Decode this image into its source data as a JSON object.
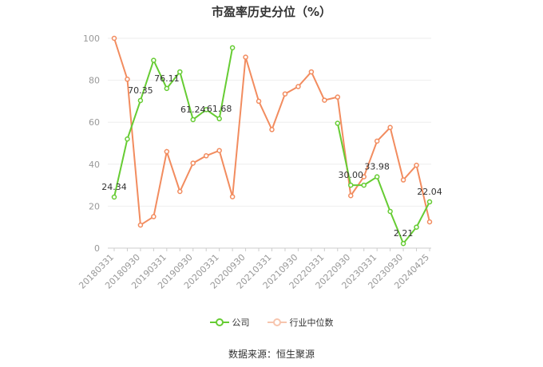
{
  "title": "市盈率历史分位（%）",
  "source": "数据来源：恒生聚源",
  "legend": {
    "company": "公司",
    "industry": "行业中位数"
  },
  "colors": {
    "company": "#66cc33",
    "industry": "#f28c5f",
    "axis": "#999999",
    "grid": "#eeeeee",
    "label": "#333333"
  },
  "chart_data": {
    "type": "line",
    "title": "市盈率历史分位（%）",
    "xlabel": "",
    "ylabel": "",
    "ylim": [
      0,
      100
    ],
    "yticks": [
      0,
      20,
      40,
      60,
      80,
      100
    ],
    "grid": true,
    "legend_position": "bottom",
    "categories": [
      "20180331",
      "",
      "20180930",
      "",
      "20190331",
      "",
      "20190930",
      "",
      "20200331",
      "",
      "20200930",
      "",
      "20210331",
      "",
      "20210930",
      "",
      "20220331",
      "",
      "20220930",
      "",
      "20230331",
      "",
      "20230930",
      "",
      "20240425"
    ],
    "series": [
      {
        "name": "公司",
        "values": [
          24.34,
          52,
          70.35,
          89.5,
          76.11,
          84,
          61.24,
          66,
          61.68,
          95.5,
          null,
          null,
          null,
          null,
          null,
          null,
          null,
          59.5,
          30.0,
          30.0,
          33.98,
          17.5,
          2.21,
          10,
          22.04
        ],
        "labels": [
          "24.34",
          null,
          "70.35",
          null,
          "76.11",
          null,
          "61.24",
          null,
          "61.68",
          null,
          null,
          null,
          null,
          null,
          null,
          null,
          null,
          null,
          "30.00",
          null,
          "33.98",
          null,
          "2.21",
          null,
          "22.04"
        ]
      },
      {
        "name": "行业中位数",
        "values": [
          100,
          80.5,
          11,
          15,
          46,
          27,
          40.5,
          44,
          46.5,
          24.5,
          91,
          70,
          56.5,
          73.5,
          77,
          84,
          70.5,
          72,
          25,
          34,
          51,
          57.5,
          32.5,
          39.5,
          12.5
        ]
      }
    ],
    "x_ticks": [
      "20180331",
      "20180930",
      "20190331",
      "20190930",
      "20200331",
      "20200930",
      "20210331",
      "20210930",
      "20220331",
      "20220930",
      "20230331",
      "20230930",
      "20240425"
    ]
  }
}
